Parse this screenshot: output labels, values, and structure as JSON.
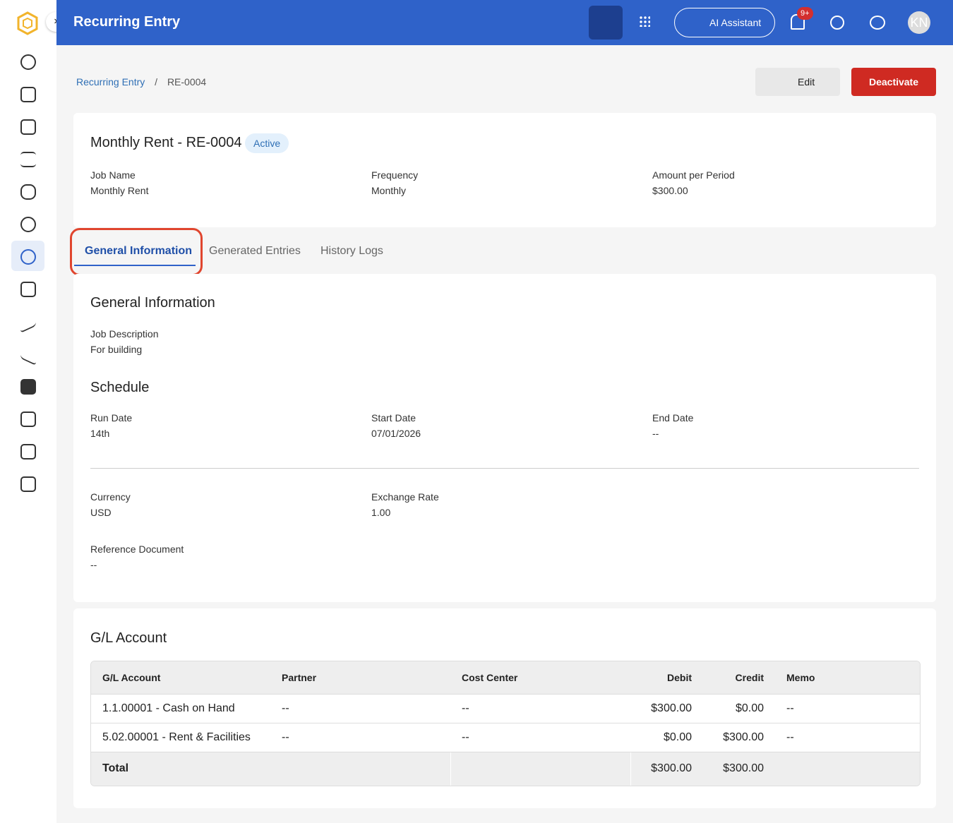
{
  "header": {
    "title": "Recurring Entry",
    "ai_button": "AI Assistant",
    "notification_badge": "9+",
    "avatar": "KN"
  },
  "breadcrumb": [
    "Recurring Entry",
    "RE-0004"
  ],
  "actions": {
    "edit": "Edit",
    "deactivate": "Deactivate"
  },
  "summary": {
    "title": "Monthly Rent - RE-0004",
    "status": "Active",
    "fields": [
      {
        "label": "Job Name",
        "value": "Monthly Rent"
      },
      {
        "label": "Frequency",
        "value": "Monthly"
      },
      {
        "label": "Amount per Period",
        "value": "$300.00"
      }
    ]
  },
  "tabs": [
    "General Information",
    "Generated Entries",
    "History Logs"
  ],
  "general": {
    "title": "General Information",
    "job_description": {
      "label": "Job Description",
      "value": "For building"
    },
    "schedule_title": "Schedule",
    "schedule": [
      {
        "label": "Run Date",
        "value": "14th"
      },
      {
        "label": "Start Date",
        "value": "07/01/2026"
      },
      {
        "label": "End Date",
        "value": "--"
      }
    ],
    "currency": [
      {
        "label": "Currency",
        "value": "USD"
      },
      {
        "label": "Exchange Rate",
        "value": "1.00"
      }
    ],
    "reference": {
      "label": "Reference Document",
      "value": "--"
    }
  },
  "gl": {
    "title": "G/L Account",
    "columns": [
      "G/L Account",
      "Partner",
      "Cost Center",
      "Debit",
      "Credit",
      "Memo"
    ],
    "rows": [
      [
        "1.1.00001 - Cash on Hand",
        "--",
        "--",
        "$300.00",
        "$0.00",
        "--"
      ],
      [
        "5.02.00001 - Rent & Facilities",
        "--",
        "--",
        "$0.00",
        "$300.00",
        "--"
      ]
    ],
    "total": {
      "label": "Total",
      "debit": "$300.00",
      "credit": "$300.00"
    }
  }
}
